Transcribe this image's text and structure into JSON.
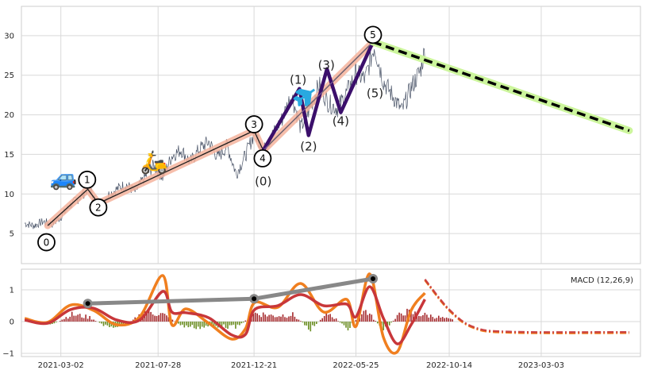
{
  "chart_data": [
    {
      "type": "line",
      "panel": "price",
      "x_tick_labels": [
        "2021-03-02",
        "2021-07-28",
        "2021-12-21",
        "2022-05-25",
        "2022-10-14",
        "2023-03-03"
      ],
      "x_tick_dates": [
        "2021-03-02",
        "2021-07-28",
        "2021-12-21",
        "2022-05-25",
        "2022-10-14",
        "2023-03-03"
      ],
      "xlim": [
        "2021-01-01",
        "2023-08-01"
      ],
      "y_ticks": [
        5,
        10,
        15,
        20,
        25,
        30
      ],
      "ylim": [
        1.2,
        33.7
      ],
      "grid": true,
      "price_series": {
        "x": [
          "2021-01-06",
          "2021-01-20",
          "2021-02-03",
          "2021-02-17",
          "2021-03-03",
          "2021-03-17",
          "2021-03-31",
          "2021-04-14",
          "2021-04-28",
          "2021-05-12",
          "2021-05-26",
          "2021-06-09",
          "2021-06-23",
          "2021-07-07",
          "2021-07-21",
          "2021-08-04",
          "2021-08-18",
          "2021-09-01",
          "2021-09-15",
          "2021-09-29",
          "2021-10-13",
          "2021-10-27",
          "2021-11-10",
          "2021-11-24",
          "2021-12-08",
          "2021-12-22",
          "2022-01-05",
          "2022-01-19",
          "2022-02-02",
          "2022-02-16",
          "2022-03-02",
          "2022-03-16",
          "2022-03-30",
          "2022-04-13",
          "2022-04-27",
          "2022-05-11",
          "2022-05-25",
          "2022-06-08",
          "2022-06-22",
          "2022-07-06",
          "2022-07-20",
          "2022-08-03",
          "2022-08-17",
          "2022-08-31",
          "2022-09-07"
        ],
        "y": [
          6.3,
          6.0,
          6.5,
          6.2,
          7.2,
          8.6,
          9.6,
          10.8,
          8.4,
          9.8,
          10.6,
          11.2,
          10.3,
          12.0,
          13.6,
          12.1,
          14.8,
          15.6,
          14.0,
          15.7,
          16.6,
          14.6,
          16.1,
          12.5,
          14.9,
          17.8,
          15.5,
          17.6,
          19.5,
          22.6,
          18.3,
          20.8,
          23.8,
          21.5,
          20.8,
          22.8,
          25.2,
          24.5,
          28.7,
          24.2,
          22.4,
          20.5,
          23.4,
          25.6,
          28.2
        ]
      },
      "wave_overlay": {
        "x": [
          "2021-02-10",
          "2021-04-12",
          "2021-04-28",
          "2021-12-21",
          "2022-01-04",
          "2022-06-20"
        ],
        "y": [
          6.0,
          10.6,
          8.8,
          18.0,
          15.5,
          29.2
        ]
      },
      "wave_labels": [
        {
          "label": "0",
          "x": "2021-02-08",
          "y": 3.9,
          "circled": true
        },
        {
          "label": "1",
          "x": "2021-04-11",
          "y": 11.8,
          "circled": true
        },
        {
          "label": "2",
          "x": "2021-04-28",
          "y": 8.3,
          "circled": true
        },
        {
          "label": "3",
          "x": "2021-12-21",
          "y": 18.8,
          "circled": true
        },
        {
          "label": "4",
          "x": "2022-01-03",
          "y": 14.5,
          "circled": true
        },
        {
          "label": "5",
          "x": "2022-06-20",
          "y": 30.1,
          "circled": true
        },
        {
          "label": "(0)",
          "x": "2022-01-04",
          "y": 11.6,
          "circled": false
        },
        {
          "label": "(1)",
          "x": "2022-02-26",
          "y": 24.4,
          "circled": false
        },
        {
          "label": "(2)",
          "x": "2022-03-14",
          "y": 16.0,
          "circled": false
        },
        {
          "label": "(3)",
          "x": "2022-04-10",
          "y": 26.3,
          "circled": false
        },
        {
          "label": "(4)",
          "x": "2022-05-02",
          "y": 19.2,
          "circled": false
        },
        {
          "label": "(5)",
          "x": "2022-06-23",
          "y": 22.7,
          "circled": false
        }
      ],
      "subwave": {
        "x": [
          "2022-01-04",
          "2022-02-28",
          "2022-03-14",
          "2022-04-11",
          "2022-05-02",
          "2022-06-20"
        ],
        "y": [
          15.5,
          23.3,
          17.4,
          25.8,
          20.3,
          29.2
        ]
      },
      "projection": {
        "x": [
          "2022-06-20",
          "2023-07-15"
        ],
        "y": [
          29.2,
          18.0
        ]
      },
      "icons": [
        {
          "name": "car-icon",
          "glyph": "🚙",
          "x": "2021-03-06",
          "y": 12.0
        },
        {
          "name": "scooter-icon",
          "glyph": "🛵",
          "x": "2021-07-22",
          "y": 14.0
        },
        {
          "name": "airplane-icon",
          "glyph": "✈",
          "x": "2022-03-11",
          "y": 22.5
        }
      ],
      "colors": {
        "price": "#4a5468",
        "wave_shadow": "#f4b39c",
        "wave": "#1f1f1f",
        "subwave": "#3b0f6b",
        "subwave_highlight": "#9c8fb0",
        "projection_shadow": "#ccf59c",
        "projection": "#000000",
        "airplane": "#29a9e0"
      }
    },
    {
      "type": "line",
      "panel": "macd",
      "legend": "MACD (12,26,9)",
      "legend_position": "top-right",
      "y_ticks": [
        -1,
        0,
        1
      ],
      "ylim": [
        -1.1,
        1.65
      ],
      "grid": true,
      "series": [
        {
          "role": "macd",
          "color": "#f07f1f",
          "x": [
            "2021-01-06",
            "2021-02-10",
            "2021-03-17",
            "2021-04-21",
            "2021-05-26",
            "2021-06-30",
            "2021-08-04",
            "2021-08-18",
            "2021-09-08",
            "2021-10-13",
            "2021-11-17",
            "2021-12-08",
            "2021-12-22",
            "2022-01-26",
            "2022-03-02",
            "2022-04-06",
            "2022-05-11",
            "2022-05-25",
            "2022-06-15",
            "2022-07-06",
            "2022-07-27",
            "2022-08-17",
            "2022-09-07"
          ],
          "y": [
            0.1,
            -0.02,
            0.52,
            0.35,
            -0.1,
            0.15,
            1.45,
            -0.1,
            0.4,
            -0.05,
            -0.55,
            -0.22,
            0.6,
            0.45,
            1.2,
            0.3,
            0.7,
            -0.15,
            1.5,
            -0.5,
            -0.95,
            0.35,
            0.9
          ]
        },
        {
          "role": "signal",
          "color": "#c8373a",
          "x": [
            "2021-01-06",
            "2021-02-10",
            "2021-03-17",
            "2021-04-21",
            "2021-05-26",
            "2021-06-30",
            "2021-08-04",
            "2021-08-18",
            "2021-09-08",
            "2021-10-13",
            "2021-11-17",
            "2021-12-08",
            "2021-12-22",
            "2022-01-26",
            "2022-03-02",
            "2022-04-06",
            "2022-05-11",
            "2022-05-25",
            "2022-06-15",
            "2022-07-06",
            "2022-07-27",
            "2022-08-17",
            "2022-09-07"
          ],
          "y": [
            0.05,
            -0.05,
            0.38,
            0.42,
            0.05,
            0.05,
            0.95,
            0.3,
            0.28,
            0.12,
            -0.42,
            -0.4,
            0.38,
            0.5,
            0.85,
            0.5,
            0.55,
            0.15,
            1.1,
            0.1,
            -0.7,
            -0.1,
            0.7
          ]
        }
      ],
      "macd_projection": {
        "x": [
          "2022-09-07",
          "2022-10-14",
          "2022-11-20",
          "2023-01-15",
          "2023-07-15"
        ],
        "y": [
          1.3,
          0.35,
          -0.2,
          -0.35,
          -0.36
        ],
        "colors": [
          "#f07f1f",
          "#c8373a"
        ]
      },
      "histogram": {
        "x": [
          "2021-01-20",
          "2021-02-17",
          "2021-03-17",
          "2021-04-14",
          "2021-05-12",
          "2021-06-09",
          "2021-07-07",
          "2021-08-04",
          "2021-09-01",
          "2021-09-29",
          "2021-10-27",
          "2021-11-24",
          "2021-12-22",
          "2022-01-19",
          "2022-02-16",
          "2022-03-16",
          "2022-04-13",
          "2022-05-11",
          "2022-06-08",
          "2022-07-06",
          "2022-08-03",
          "2022-08-31",
          "2022-09-21",
          "2022-10-19"
        ],
        "y": [
          0.05,
          -0.1,
          0.25,
          0.15,
          -0.2,
          -0.1,
          0.35,
          0.25,
          -0.15,
          -0.2,
          -0.15,
          -0.2,
          0.3,
          0.2,
          0.25,
          -0.25,
          0.3,
          -0.25,
          0.4,
          -0.3,
          0.35,
          0.25,
          0.18,
          0.06
        ],
        "pos_color": "#a5292c",
        "neg_color": "#6b8e23"
      },
      "trendline": {
        "x": [
          "2021-04-12",
          "2021-12-21",
          "2022-06-20"
        ],
        "y": [
          0.57,
          0.72,
          1.35
        ],
        "color": "#888888"
      }
    }
  ]
}
